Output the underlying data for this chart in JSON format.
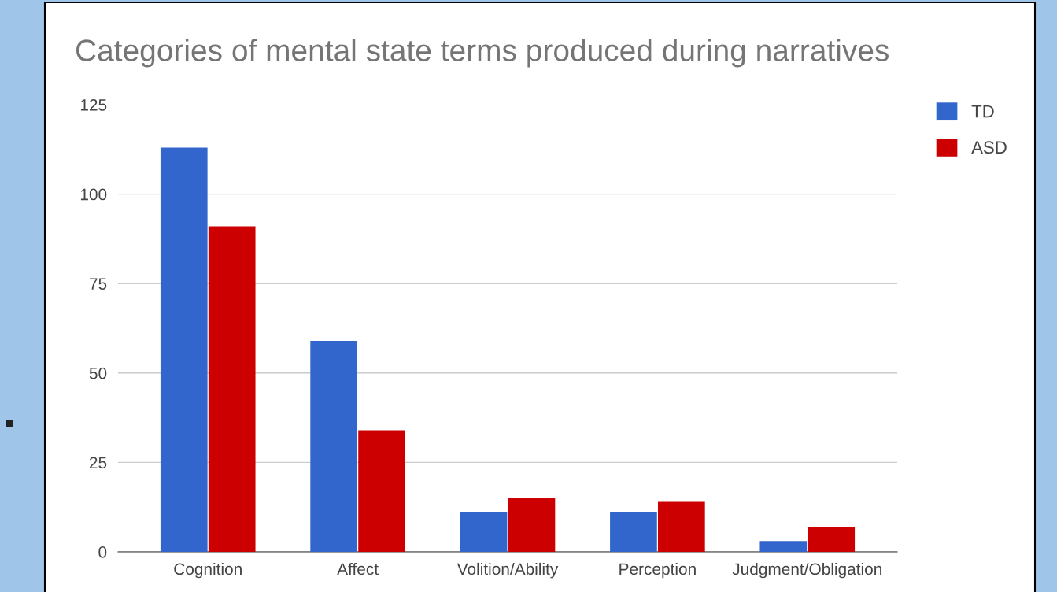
{
  "chart_data": {
    "type": "bar",
    "title": "Categories of mental state terms produced during narratives",
    "categories": [
      "Cognition",
      "Affect",
      "Volition/Ability",
      "Perception",
      "Judgment/Obligation"
    ],
    "series": [
      {
        "name": "TD",
        "color": "#3366cc",
        "values": [
          113,
          59,
          11,
          11,
          3
        ]
      },
      {
        "name": "ASD",
        "color": "#cc0000",
        "values": [
          91,
          34,
          15,
          14,
          7
        ]
      }
    ],
    "ylim": [
      0,
      125
    ],
    "yticks": [
      0,
      25,
      50,
      75,
      100,
      125
    ],
    "grid": "y",
    "legend": "top right"
  }
}
